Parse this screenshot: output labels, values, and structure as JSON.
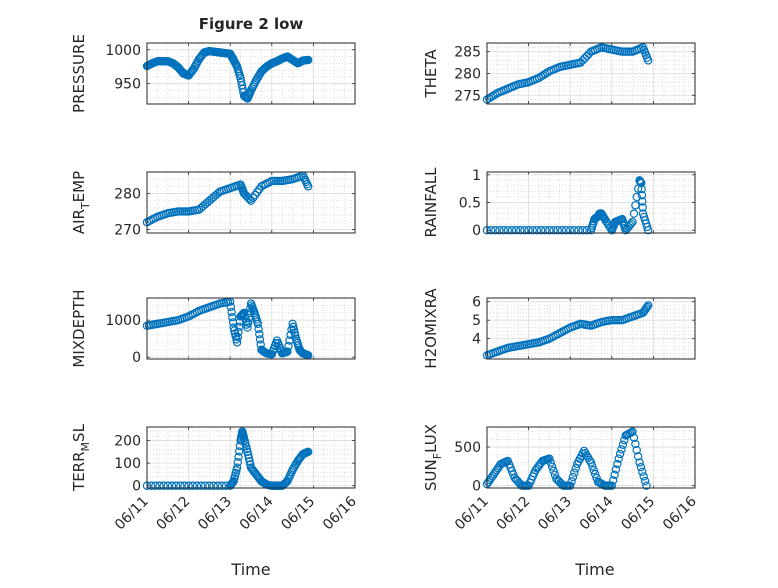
{
  "figure": {
    "title": "Figure 2 low",
    "xlabel": "Time",
    "date_ticks": [
      "06/11",
      "06/12",
      "06/13",
      "06/14",
      "06/15",
      "06/16"
    ],
    "marker_color": "#0072BD"
  },
  "chart_data": [
    {
      "type": "scatter",
      "ylabel_main": "PRESSURE",
      "ylabel_sub": "",
      "ylabel_tail": "",
      "ylim": [
        920,
        1010
      ],
      "yticks": [
        950,
        1000
      ],
      "xlim": [
        "06/11",
        "06/16"
      ],
      "grid": true,
      "x": [
        "06/11 00:00",
        "06/11 03:00",
        "06/11 06:00",
        "06/11 09:00",
        "06/11 12:00",
        "06/11 15:00",
        "06/11 18:00",
        "06/11 21:00",
        "06/12 00:00",
        "06/12 03:00",
        "06/12 06:00",
        "06/12 09:00",
        "06/12 12:00",
        "06/12 15:00",
        "06/12 18:00",
        "06/12 21:00",
        "06/13 00:00",
        "06/13 02:00",
        "06/13 04:00",
        "06/13 06:00",
        "06/13 08:00",
        "06/13 10:00",
        "06/13 12:00",
        "06/13 15:00",
        "06/13 18:00",
        "06/13 21:00",
        "06/14 00:00",
        "06/14 03:00",
        "06/14 06:00",
        "06/14 09:00",
        "06/14 12:00",
        "06/14 15:00",
        "06/14 18:00",
        "06/14 21:00"
      ],
      "y": [
        976,
        980,
        983,
        983,
        983,
        980,
        974,
        965,
        962,
        972,
        986,
        996,
        998,
        997,
        996,
        995,
        994,
        985,
        975,
        958,
        932,
        928,
        940,
        955,
        968,
        975,
        980,
        983,
        987,
        990,
        985,
        980,
        984,
        985
      ]
    },
    {
      "type": "scatter",
      "ylabel_main": "THETA",
      "ylabel_sub": "",
      "ylabel_tail": "",
      "ylim": [
        273,
        287
      ],
      "yticks": [
        275,
        280,
        285
      ],
      "xlim": [
        "06/11",
        "06/16"
      ],
      "grid": true,
      "x": [
        "06/11 00:00",
        "06/11 06:00",
        "06/11 12:00",
        "06/11 18:00",
        "06/12 00:00",
        "06/12 06:00",
        "06/12 12:00",
        "06/12 18:00",
        "06/13 00:00",
        "06/13 06:00",
        "06/13 12:00",
        "06/13 18:00",
        "06/14 00:00",
        "06/14 06:00",
        "06/14 12:00",
        "06/14 18:00",
        "06/14 21:00"
      ],
      "y": [
        274,
        275.5,
        276.5,
        277.5,
        278,
        279,
        280.5,
        281.5,
        282,
        282.5,
        285,
        286,
        285.5,
        285,
        285,
        286,
        283
      ]
    },
    {
      "type": "scatter",
      "ylabel_main": "AIR",
      "ylabel_sub": "T",
      "ylabel_tail": "EMP",
      "ylim": [
        269,
        286
      ],
      "yticks": [
        270,
        280
      ],
      "xlim": [
        "06/11",
        "06/16"
      ],
      "grid": true,
      "x": [
        "06/11 00:00",
        "06/11 06:00",
        "06/11 12:00",
        "06/11 18:00",
        "06/12 00:00",
        "06/12 06:00",
        "06/12 12:00",
        "06/12 18:00",
        "06/13 00:00",
        "06/13 06:00",
        "06/13 08:00",
        "06/13 12:00",
        "06/13 18:00",
        "06/14 00:00",
        "06/14 06:00",
        "06/14 12:00",
        "06/14 18:00",
        "06/14 21:00"
      ],
      "y": [
        272,
        273.5,
        274.5,
        275,
        275,
        275.5,
        278,
        280.5,
        281.5,
        282.5,
        280,
        278,
        282,
        283.5,
        283.5,
        284,
        285,
        282
      ]
    },
    {
      "type": "scatter",
      "ylabel_main": "RAINFALL",
      "ylabel_sub": "",
      "ylabel_tail": "",
      "ylim": [
        -0.05,
        1.05
      ],
      "yticks": [
        0,
        0.5,
        1
      ],
      "xlim": [
        "06/11",
        "06/16"
      ],
      "grid": true,
      "x": [
        "06/11 00:00",
        "06/11 12:00",
        "06/12 00:00",
        "06/12 12:00",
        "06/13 00:00",
        "06/13 12:00",
        "06/13 14:00",
        "06/13 16:00",
        "06/13 17:00",
        "06/13 18:00",
        "06/13 20:00",
        "06/14 00:00",
        "06/14 02:00",
        "06/14 06:00",
        "06/14 08:00",
        "06/14 12:00",
        "06/14 16:00",
        "06/14 17:00",
        "06/14 18:00",
        "06/14 21:00"
      ],
      "y": [
        0,
        0,
        0,
        0,
        0,
        0,
        0.2,
        0.25,
        0.3,
        0.3,
        0.2,
        0,
        0.15,
        0.2,
        0,
        0.15,
        0.9,
        0.85,
        0.3,
        0
      ]
    },
    {
      "type": "scatter",
      "ylabel_main": "MIXDEPTH",
      "ylabel_sub": "",
      "ylabel_tail": "",
      "ylim": [
        -50,
        1600
      ],
      "yticks": [
        0,
        1000
      ],
      "xlim": [
        "06/11",
        "06/16"
      ],
      "grid": true,
      "x": [
        "06/11 00:00",
        "06/11 06:00",
        "06/11 12:00",
        "06/11 18:00",
        "06/12 00:00",
        "06/12 06:00",
        "06/12 12:00",
        "06/12 18:00",
        "06/13 00:00",
        "06/13 02:00",
        "06/13 04:00",
        "06/13 06:00",
        "06/13 08:00",
        "06/13 10:00",
        "06/13 12:00",
        "06/13 14:00",
        "06/13 16:00",
        "06/13 18:00",
        "06/13 21:00",
        "06/14 00:00",
        "06/14 03:00",
        "06/14 06:00",
        "06/14 09:00",
        "06/14 12:00",
        "06/14 14:00",
        "06/14 16:00",
        "06/14 18:00",
        "06/14 21:00"
      ],
      "y": [
        850,
        900,
        950,
        1000,
        1100,
        1250,
        1350,
        1450,
        1500,
        800,
        400,
        1100,
        1200,
        800,
        1450,
        1200,
        900,
        200,
        100,
        80,
        450,
        100,
        150,
        900,
        500,
        200,
        100,
        50
      ]
    },
    {
      "type": "scatter",
      "ylabel_main": "H2OMIXRA",
      "ylabel_sub": "",
      "ylabel_tail": "",
      "ylim": [
        2.9,
        6.2
      ],
      "yticks": [
        4,
        5,
        6
      ],
      "xlim": [
        "06/11",
        "06/16"
      ],
      "grid": true,
      "x": [
        "06/11 00:00",
        "06/11 06:00",
        "06/11 12:00",
        "06/11 18:00",
        "06/12 00:00",
        "06/12 06:00",
        "06/12 12:00",
        "06/12 18:00",
        "06/13 00:00",
        "06/13 06:00",
        "06/13 12:00",
        "06/13 18:00",
        "06/14 00:00",
        "06/14 06:00",
        "06/14 12:00",
        "06/14 18:00",
        "06/14 21:00"
      ],
      "y": [
        3.1,
        3.3,
        3.5,
        3.6,
        3.7,
        3.8,
        4.0,
        4.3,
        4.6,
        4.8,
        4.7,
        4.9,
        5.0,
        5.0,
        5.2,
        5.4,
        5.8
      ]
    },
    {
      "type": "scatter",
      "ylabel_main": "TERR",
      "ylabel_sub": "M",
      "ylabel_tail": "SL",
      "ylim": [
        -10,
        260
      ],
      "yticks": [
        0,
        100,
        200
      ],
      "xlim": [
        "06/11",
        "06/16"
      ],
      "grid": true,
      "x": [
        "06/11 00:00",
        "06/11 12:00",
        "06/12 00:00",
        "06/12 12:00",
        "06/13 00:00",
        "06/13 02:00",
        "06/13 04:00",
        "06/13 06:00",
        "06/13 07:00",
        "06/13 08:00",
        "06/13 10:00",
        "06/13 12:00",
        "06/13 15:00",
        "06/13 18:00",
        "06/13 21:00",
        "06/14 00:00",
        "06/14 03:00",
        "06/14 06:00",
        "06/14 09:00",
        "06/14 12:00",
        "06/14 15:00",
        "06/14 18:00",
        "06/14 21:00"
      ],
      "y": [
        0,
        0,
        0,
        0,
        0,
        20,
        80,
        200,
        240,
        210,
        150,
        80,
        50,
        20,
        5,
        0,
        0,
        0,
        20,
        70,
        110,
        140,
        150
      ]
    },
    {
      "type": "scatter",
      "ylabel_main": "SUN",
      "ylabel_sub": "F",
      "ylabel_tail": "LUX",
      "ylim": [
        -30,
        760
      ],
      "yticks": [
        0,
        500
      ],
      "xlim": [
        "06/11",
        "06/16"
      ],
      "grid": true,
      "x": [
        "06/11 00:00",
        "06/11 04:00",
        "06/11 08:00",
        "06/11 12:00",
        "06/11 16:00",
        "06/11 20:00",
        "06/12 00:00",
        "06/12 04:00",
        "06/12 08:00",
        "06/12 12:00",
        "06/12 16:00",
        "06/12 20:00",
        "06/13 00:00",
        "06/13 04:00",
        "06/13 08:00",
        "06/13 12:00",
        "06/13 16:00",
        "06/13 20:00",
        "06/14 00:00",
        "06/14 04:00",
        "06/14 08:00",
        "06/14 12:00",
        "06/14 16:00",
        "06/14 20:00"
      ],
      "y": [
        20,
        150,
        280,
        320,
        100,
        0,
        0,
        200,
        320,
        350,
        90,
        0,
        0,
        280,
        450,
        300,
        50,
        0,
        0,
        350,
        650,
        700,
        300,
        0
      ]
    }
  ]
}
